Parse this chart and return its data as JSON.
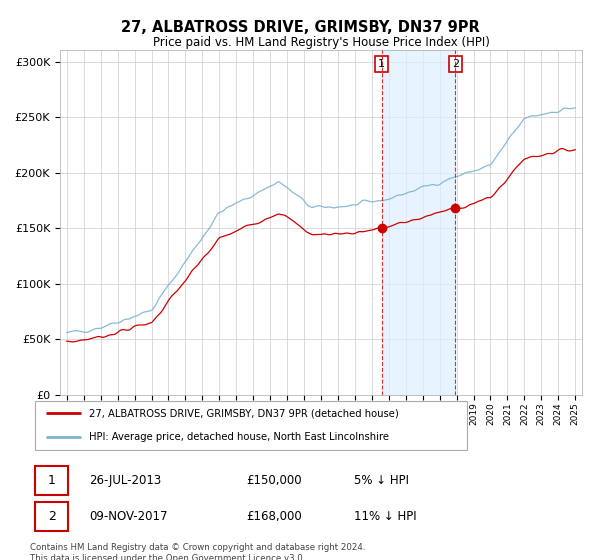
{
  "title": "27, ALBATROSS DRIVE, GRIMSBY, DN37 9PR",
  "subtitle": "Price paid vs. HM Land Registry's House Price Index (HPI)",
  "ylabel_ticks": [
    "£0",
    "£50K",
    "£100K",
    "£150K",
    "£200K",
    "£250K",
    "£300K"
  ],
  "ytick_values": [
    0,
    50000,
    100000,
    150000,
    200000,
    250000,
    300000
  ],
  "ylim": [
    0,
    310000
  ],
  "hpi_color": "#7ab3d4",
  "price_color": "#cc0000",
  "t1_year": 2013.58,
  "t2_year": 2017.92,
  "t1_price": 150000,
  "t2_price": 168000,
  "transaction1_date": "26-JUL-2013",
  "transaction1_hpi": "5% ↓ HPI",
  "transaction2_date": "09-NOV-2017",
  "transaction2_hpi": "11% ↓ HPI",
  "legend_house_label": "27, ALBATROSS DRIVE, GRIMSBY, DN37 9PR (detached house)",
  "legend_hpi_label": "HPI: Average price, detached house, North East Lincolnshire",
  "footer": "Contains HM Land Registry data © Crown copyright and database right 2024.\nThis data is licensed under the Open Government Licence v3.0.",
  "background_color": "#ffffff",
  "grid_color": "#cccccc",
  "shade_color": "#ddeeff",
  "box_border_color": "#cc0000",
  "vline_color": "#cc0000"
}
